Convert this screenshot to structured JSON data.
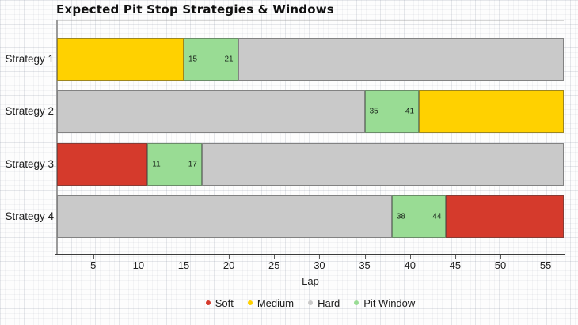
{
  "title": "Expected Pit Stop Strategies & Windows",
  "chart_data": {
    "type": "bar",
    "orientation": "horizontal",
    "stacked": true,
    "title": "Expected Pit Stop Strategies & Windows",
    "xlabel": "Lap",
    "x_range": [
      1,
      57
    ],
    "x_ticks": [
      5,
      10,
      15,
      20,
      25,
      30,
      35,
      40,
      45,
      50,
      55
    ],
    "grid": "fine graph-paper texture over whole canvas",
    "legend_position": "bottom-center",
    "categories": [
      "Strategy 1",
      "Strategy 2",
      "Strategy 3",
      "Strategy 4"
    ],
    "colors": {
      "Soft": "#d53a2c",
      "Medium": "#ffd100",
      "Hard": "#c9c9c9",
      "Pit Window": "#99dc94"
    },
    "legend": [
      "Soft",
      "Medium",
      "Hard",
      "Pit Window"
    ],
    "strategies": [
      {
        "name": "Strategy 1",
        "segments": [
          {
            "compound": "Medium",
            "start": 1,
            "end": 15
          },
          {
            "compound": "Pit Window",
            "start": 15,
            "end": 21,
            "start_label": "15",
            "end_label": "21"
          },
          {
            "compound": "Hard",
            "start": 21,
            "end": 57
          }
        ]
      },
      {
        "name": "Strategy 2",
        "segments": [
          {
            "compound": "Hard",
            "start": 1,
            "end": 35
          },
          {
            "compound": "Pit Window",
            "start": 35,
            "end": 41,
            "start_label": "35",
            "end_label": "41"
          },
          {
            "compound": "Medium",
            "start": 41,
            "end": 57
          }
        ]
      },
      {
        "name": "Strategy 3",
        "segments": [
          {
            "compound": "Soft",
            "start": 1,
            "end": 11
          },
          {
            "compound": "Pit Window",
            "start": 11,
            "end": 17,
            "start_label": "11",
            "end_label": "17"
          },
          {
            "compound": "Hard",
            "start": 17,
            "end": 57
          }
        ]
      },
      {
        "name": "Strategy 4",
        "segments": [
          {
            "compound": "Hard",
            "start": 1,
            "end": 38
          },
          {
            "compound": "Pit Window",
            "start": 38,
            "end": 44,
            "start_label": "38",
            "end_label": "44"
          },
          {
            "compound": "Soft",
            "start": 44,
            "end": 57
          }
        ]
      }
    ]
  }
}
